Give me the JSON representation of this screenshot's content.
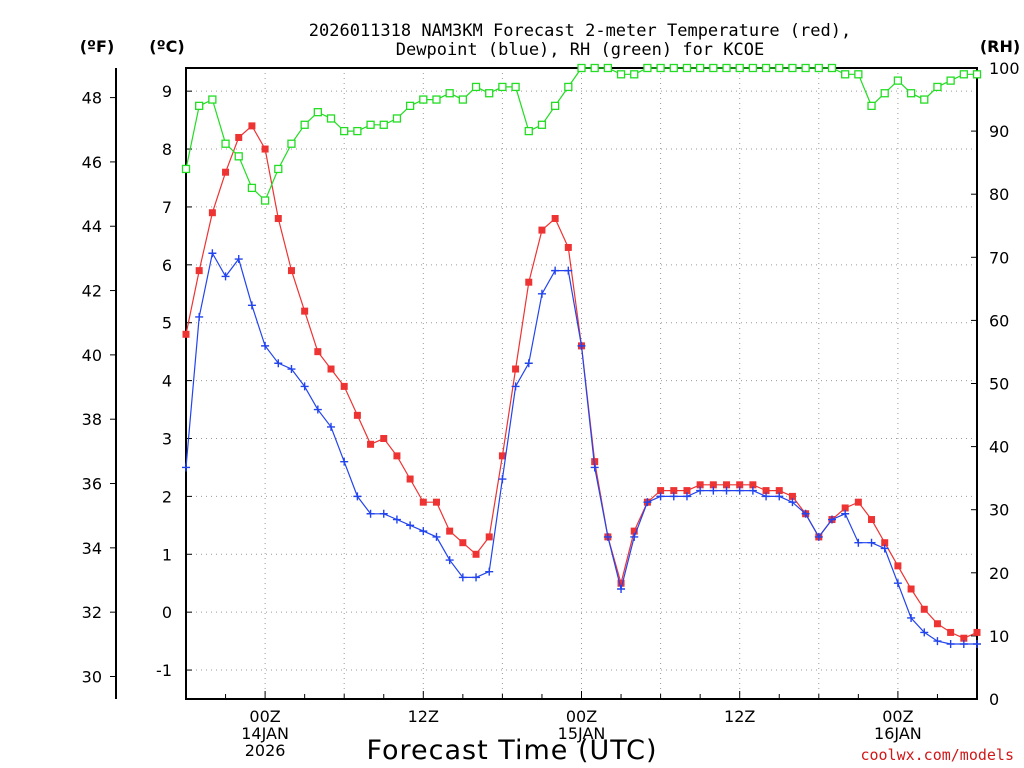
{
  "chart_data": {
    "type": "line",
    "title_line1": "2026011318 NAM3KM Forecast 2-meter Temperature (red),",
    "title_line2": "Dewpoint (blue), RH (green) for KCOE",
    "unit_f": "(ºF)",
    "unit_c": "(ºC)",
    "unit_rh": "(RH)",
    "xlabel": "Forecast Time (UTC)",
    "credit": "coolwx.com/models",
    "x_start_hour": 18,
    "x_end_hour": 78,
    "c_range": [
      -1.5,
      9.4
    ],
    "rh_range": [
      0,
      100
    ],
    "f_ticks": [
      "30",
      "32",
      "34",
      "36",
      "38",
      "40",
      "42",
      "44",
      "46",
      "48"
    ],
    "c_ticks": [
      "-1",
      "0",
      "1",
      "2",
      "3",
      "4",
      "5",
      "6",
      "7",
      "8",
      "9"
    ],
    "rh_ticks": [
      "0",
      "10",
      "20",
      "30",
      "40",
      "50",
      "60",
      "70",
      "80",
      "90",
      "100"
    ],
    "x_ticks": [
      {
        "hour": 24,
        "lines": [
          "00Z",
          "14JAN",
          "2026"
        ]
      },
      {
        "hour": 36,
        "lines": [
          "12Z"
        ]
      },
      {
        "hour": 48,
        "lines": [
          "00Z",
          "15JAN"
        ]
      },
      {
        "hour": 60,
        "lines": [
          "12Z"
        ]
      },
      {
        "hour": 72,
        "lines": [
          "00Z",
          "16JAN"
        ]
      }
    ],
    "series": [
      {
        "name": "Temperature (red)",
        "color": "#ee3333",
        "unit": "C",
        "marker": "filled-square",
        "values": [
          4.8,
          5.9,
          6.9,
          7.6,
          8.2,
          8.4,
          8.0,
          6.8,
          5.9,
          5.2,
          4.5,
          4.2,
          3.9,
          3.4,
          2.9,
          3.0,
          2.7,
          2.3,
          1.9,
          1.9,
          1.4,
          1.2,
          1.0,
          1.3,
          2.7,
          4.2,
          5.7,
          6.6,
          6.8,
          6.3,
          4.6,
          2.6,
          1.3,
          0.5,
          1.4,
          1.9,
          2.1,
          2.1,
          2.1,
          2.2,
          2.2,
          2.2,
          2.2,
          2.2,
          2.1,
          2.1,
          2.0,
          1.7,
          1.3,
          1.6,
          1.8,
          1.9,
          1.6,
          1.2,
          0.8,
          0.4,
          0.05,
          -0.2,
          -0.35,
          -0.45,
          -0.35
        ]
      },
      {
        "name": "Dewpoint (blue)",
        "color": "#2244ee",
        "unit": "C",
        "marker": "plus",
        "values": [
          2.5,
          5.1,
          6.2,
          5.8,
          6.1,
          5.3,
          4.6,
          4.3,
          4.2,
          3.9,
          3.5,
          3.2,
          2.6,
          2.0,
          1.7,
          1.7,
          1.6,
          1.5,
          1.4,
          1.3,
          0.9,
          0.6,
          0.6,
          0.7,
          2.3,
          3.9,
          4.3,
          5.5,
          5.9,
          5.9,
          4.6,
          2.5,
          1.3,
          0.4,
          1.3,
          1.9,
          2.0,
          2.0,
          2.0,
          2.1,
          2.1,
          2.1,
          2.1,
          2.1,
          2.0,
          2.0,
          1.9,
          1.7,
          1.3,
          1.6,
          1.7,
          1.2,
          1.2,
          1.1,
          0.5,
          -0.1,
          -0.35,
          -0.5,
          -0.55,
          -0.55,
          -0.55
        ]
      },
      {
        "name": "RH (green)",
        "color": "#22dd22",
        "unit": "RH",
        "marker": "open-square",
        "values": [
          84,
          94,
          95,
          88,
          86,
          81,
          79,
          84,
          88,
          91,
          93,
          92,
          90,
          90,
          91,
          91,
          92,
          94,
          95,
          95,
          96,
          95,
          97,
          96,
          97,
          97,
          90,
          91,
          94,
          97,
          100,
          100,
          100,
          99,
          99,
          100,
          100,
          100,
          100,
          100,
          100,
          100,
          100,
          100,
          100,
          100,
          100,
          100,
          100,
          100,
          99,
          99,
          94,
          96,
          98,
          96,
          95,
          97,
          98,
          99,
          99
        ]
      }
    ]
  }
}
